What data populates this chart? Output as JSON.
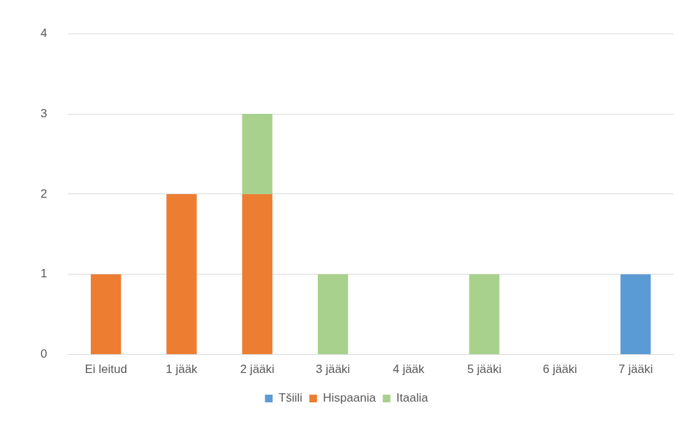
{
  "chart_data": {
    "type": "bar",
    "stacked": true,
    "categories": [
      "Ei leitud",
      "1 jääk",
      "2 jääki",
      "3 jääki",
      "4 jääk",
      "5 jääki",
      "6 jääki",
      "7 jääki"
    ],
    "series": [
      {
        "name": "Tšiili",
        "color": "#5b9bd5",
        "values": [
          0,
          0,
          0,
          0,
          0,
          0,
          0,
          1
        ]
      },
      {
        "name": "Hispaania",
        "color": "#ed7d31",
        "values": [
          1,
          2,
          2,
          0,
          0,
          0,
          0,
          0
        ]
      },
      {
        "name": "Itaalia",
        "color": "#a9d18e",
        "values": [
          0,
          0,
          1,
          1,
          0,
          1,
          0,
          0
        ]
      }
    ],
    "ylim": [
      0,
      4
    ],
    "yticks": [
      0,
      1,
      2,
      3,
      4
    ],
    "grid": "y",
    "legend": "bottom"
  }
}
